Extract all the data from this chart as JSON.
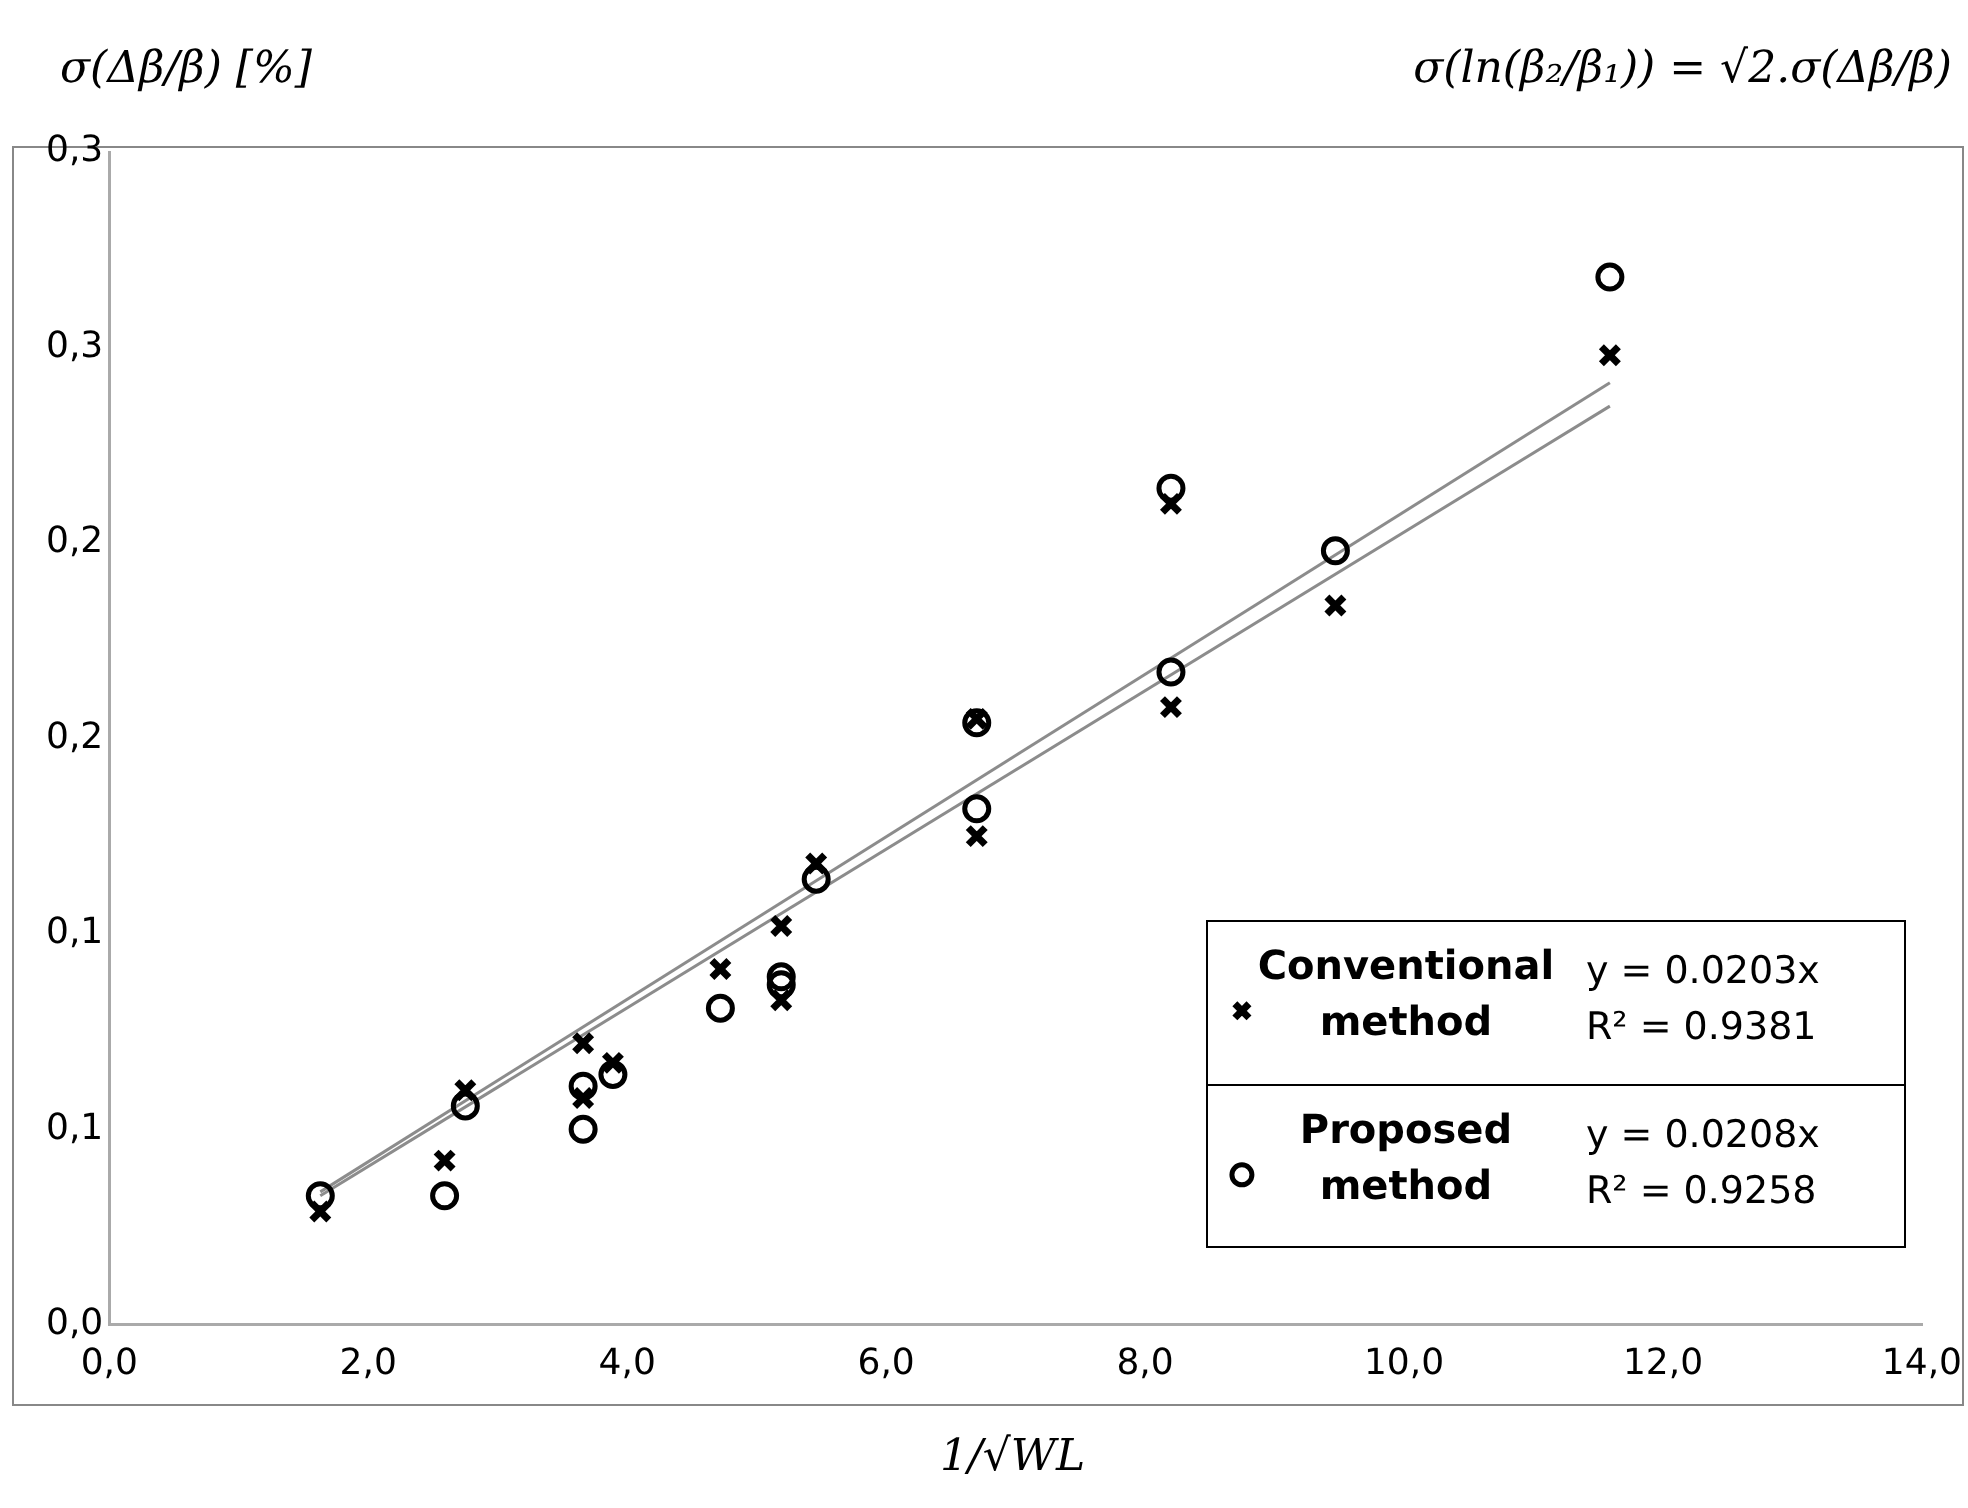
{
  "chart_data": {
    "type": "scatter",
    "ylabel": "σ(Δβ/β) [%]",
    "xlabel": "1/√WL",
    "subtitle": "σ(ln(β₂/β₁)) = √2.σ(Δβ/β)",
    "xlim": [
      0,
      14
    ],
    "xticks": [
      {
        "value": 0,
        "label": "0,0"
      },
      {
        "value": 2,
        "label": "2,0"
      },
      {
        "value": 4,
        "label": "4,0"
      },
      {
        "value": 6,
        "label": "6,0"
      },
      {
        "value": 8,
        "label": "8,0"
      },
      {
        "value": 10,
        "label": "10,0"
      },
      {
        "value": 12,
        "label": "12,0"
      },
      {
        "value": 14,
        "label": "14,0"
      }
    ],
    "ylim": [
      0,
      0.3
    ],
    "yticks": [
      {
        "value": 0,
        "label": "0,0"
      },
      {
        "value": 0.05,
        "label": "0,1"
      },
      {
        "value": 0.1,
        "label": "0,1"
      },
      {
        "value": 0.15,
        "label": "0,2"
      },
      {
        "value": 0.2,
        "label": "0,2"
      },
      {
        "value": 0.25,
        "label": "0,3"
      },
      {
        "value": 0.3,
        "label": "0,3"
      }
    ],
    "grid": false,
    "legend": "bottom right",
    "series": [
      {
        "name": "Conventional method",
        "color": "#000000",
        "marker": "cross",
        "x": [
          1.63,
          2.59,
          2.75,
          3.66,
          3.66,
          3.89,
          4.72,
          5.19,
          5.19,
          5.46,
          6.7,
          6.7,
          8.2,
          8.2,
          9.47,
          11.59
        ],
        "values": [
          0.029,
          0.042,
          0.06,
          0.072,
          0.058,
          0.067,
          0.091,
          0.102,
          0.083,
          0.118,
          0.155,
          0.125,
          0.21,
          0.158,
          0.184,
          0.248
        ]
      },
      {
        "name": "Proposed method",
        "color": "#000000",
        "marker": "circle",
        "x": [
          1.63,
          2.59,
          2.75,
          3.66,
          3.66,
          3.89,
          4.72,
          5.19,
          5.19,
          5.46,
          6.7,
          6.7,
          8.2,
          8.2,
          9.47,
          11.59
        ],
        "values": [
          0.033,
          0.033,
          0.056,
          0.061,
          0.05,
          0.064,
          0.081,
          0.089,
          0.087,
          0.114,
          0.154,
          0.132,
          0.214,
          0.167,
          0.198,
          0.268
        ]
      },
      {
        "type": "line",
        "color": "#8c8c8c",
        "marker": "none",
        "x": [
          1.63,
          11.59
        ],
        "values": [
          0.033,
          0.235
        ]
      },
      {
        "type": "line",
        "color": "#8c8c8c",
        "marker": "none",
        "x": [
          1.63,
          11.59
        ],
        "values": [
          0.034,
          0.241
        ]
      }
    ],
    "annotations": [
      "y = 0.0203x",
      "R² = 0.9381",
      "y = 0.0208x",
      "R² = 0.9258"
    ]
  }
}
